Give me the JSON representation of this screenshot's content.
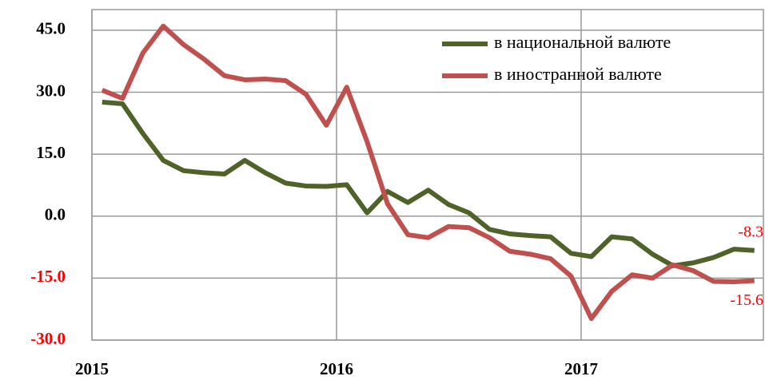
{
  "chart_data": {
    "type": "line",
    "categories": [
      "2015",
      null,
      null,
      null,
      null,
      null,
      null,
      null,
      null,
      null,
      null,
      null,
      "2016",
      null,
      null,
      null,
      null,
      null,
      null,
      null,
      null,
      null,
      null,
      null,
      "2017",
      null,
      null,
      null,
      null,
      null,
      null,
      null,
      null
    ],
    "series": [
      {
        "name": "в национальной валюте",
        "color": "#4f6228",
        "values": [
          27.6,
          27.2,
          20,
          13.5,
          11,
          10.5,
          10.2,
          13.5,
          10.5,
          8,
          7.3,
          7.2,
          7.6,
          0.8,
          6,
          3.3,
          6.3,
          2.8,
          0.8,
          -3.2,
          -4.3,
          -4.7,
          -5,
          -9,
          -9.8,
          -5,
          -5.5,
          -9.2,
          -12,
          -11.3,
          -10,
          -8,
          -8.3
        ]
      },
      {
        "name": "в иностранной валюте",
        "color": "#c0504d",
        "values": [
          30.5,
          28.5,
          39.5,
          46,
          41.5,
          38,
          34,
          33,
          33.2,
          32.8,
          29.5,
          22,
          31.2,
          18,
          3,
          -4.5,
          -5.2,
          -2.5,
          -2.8,
          -5.2,
          -8.5,
          -9.2,
          -10.3,
          -14.5,
          -24.8,
          -18.2,
          -14.2,
          -15,
          -11.8,
          -13.2,
          -15.8,
          -15.9,
          -15.6
        ]
      }
    ],
    "ylim": [
      -30,
      50
    ],
    "yticks": [
      {
        "value": -30,
        "label": "-30.0"
      },
      {
        "value": -15,
        "label": "-15.0"
      },
      {
        "value": 0,
        "label": "0.0"
      },
      {
        "value": 15,
        "label": "15.0"
      },
      {
        "value": 30,
        "label": "30.0"
      },
      {
        "value": 45,
        "label": "45.0"
      }
    ],
    "grid": true,
    "legend": "upper right",
    "negative_tick_color": "#ff0000",
    "data_label_color": "#ff0000"
  }
}
